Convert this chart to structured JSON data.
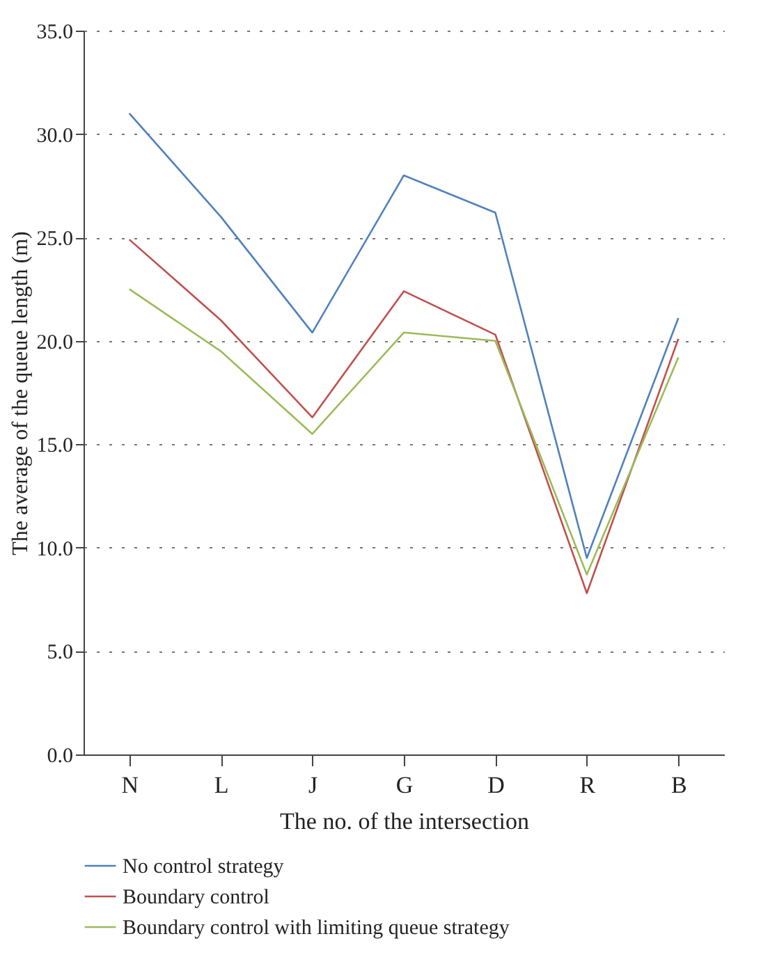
{
  "chart_data": {
    "type": "line",
    "xlabel": "The no. of the intersection",
    "ylabel": "The average of the queue length (m)",
    "categories": [
      "N",
      "L",
      "J",
      "G",
      "D",
      "R",
      "B"
    ],
    "series": [
      {
        "name": "No control strategy",
        "color": "#4f81bd",
        "values": [
          31.0,
          26.0,
          20.4,
          28.0,
          26.2,
          9.5,
          21.1
        ]
      },
      {
        "name": "Boundary control",
        "color": "#c0504d",
        "values": [
          24.9,
          21.0,
          16.3,
          22.4,
          20.3,
          7.8,
          20.1
        ]
      },
      {
        "name": "Boundary control with limiting queue strategy",
        "color": "#9bbb59",
        "values": [
          22.5,
          19.5,
          15.5,
          20.4,
          20.0,
          8.7,
          19.2
        ]
      }
    ],
    "ylim": [
      0,
      35
    ],
    "yticks": [
      {
        "value": 0,
        "label": "0.0"
      },
      {
        "value": 5,
        "label": "5.0"
      },
      {
        "value": 10,
        "label": "10.0"
      },
      {
        "value": 15,
        "label": "15.0"
      },
      {
        "value": 20,
        "label": "20.0"
      },
      {
        "value": 25,
        "label": "25.0"
      },
      {
        "value": 30,
        "label": "30.0"
      },
      {
        "value": 35,
        "label": "35.0"
      }
    ],
    "grid": "y",
    "legend": "bottom left",
    "marker": "none",
    "line_style": "solid"
  }
}
